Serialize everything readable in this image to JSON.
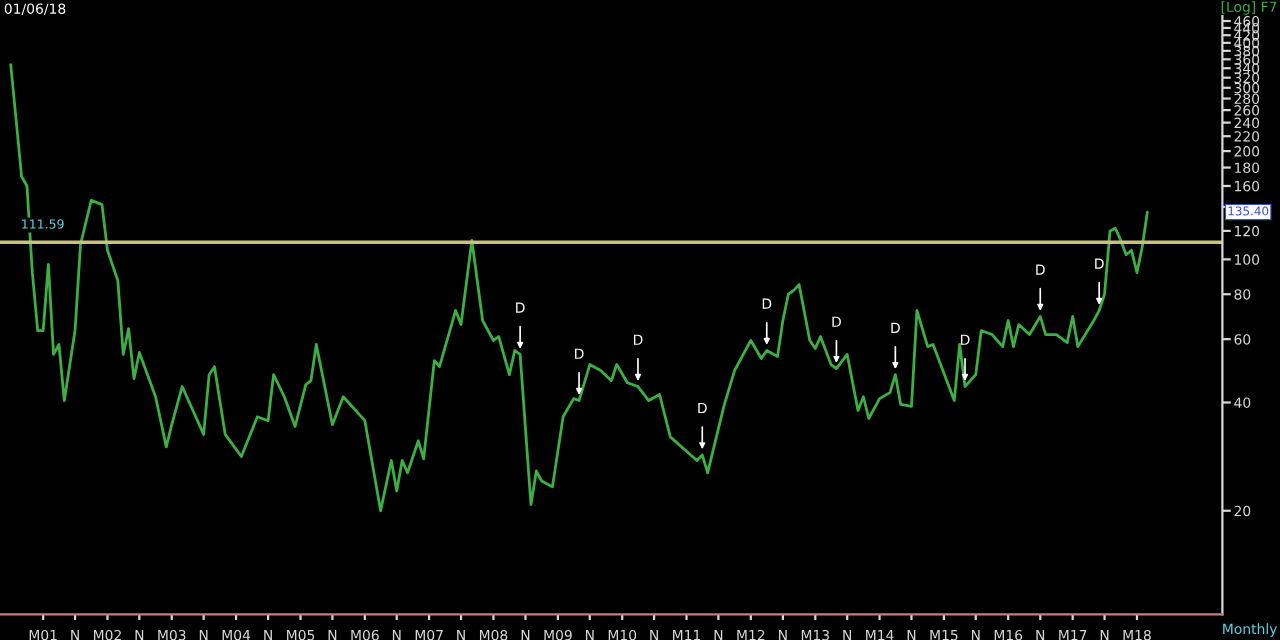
{
  "chart_data": {
    "type": "line",
    "title": "01/06/18",
    "annotations": [
      "[Log] F7",
      "Monthly",
      "135.40",
      {
        "text": "D",
        "x": "2008-06",
        "y": 54.4
      },
      {
        "text": "D",
        "x": "2009-05",
        "y": 40.5
      },
      {
        "text": "D",
        "x": "2010-04",
        "y": 44.3
      },
      {
        "text": "D",
        "x": "2011-04",
        "y": 28.6
      },
      {
        "text": "D",
        "x": "2012-04",
        "y": 55.8
      },
      {
        "text": "D",
        "x": "2013-05",
        "y": 49.7
      },
      {
        "text": "D",
        "x": "2014-04",
        "y": 47.8
      },
      {
        "text": "D",
        "x": "2015-05",
        "y": 44.3
      },
      {
        "text": "D",
        "x": "2016-07",
        "y": 69.4
      },
      {
        "text": "D",
        "x": "2017-06",
        "y": 72.1
      }
    ],
    "log": "y",
    "grid": false,
    "legend": false,
    "xlim": [
      "2000-05",
      "2019-05"
    ],
    "ylim": [
      10.3,
      475
    ],
    "xticks": [
      {
        "value": "2001-01",
        "label": "M01"
      },
      {
        "value": "2001-07",
        "label": "N"
      },
      {
        "value": "2002-01",
        "label": "M02"
      },
      {
        "value": "2002-07",
        "label": "N"
      },
      {
        "value": "2003-01",
        "label": "M03"
      },
      {
        "value": "2003-07",
        "label": "N"
      },
      {
        "value": "2004-01",
        "label": "M04"
      },
      {
        "value": "2004-07",
        "label": "N"
      },
      {
        "value": "2005-01",
        "label": "M05"
      },
      {
        "value": "2005-07",
        "label": "N"
      },
      {
        "value": "2006-01",
        "label": "M06"
      },
      {
        "value": "2006-07",
        "label": "N"
      },
      {
        "value": "2007-01",
        "label": "M07"
      },
      {
        "value": "2007-07",
        "label": "N"
      },
      {
        "value": "2008-01",
        "label": "M08"
      },
      {
        "value": "2008-07",
        "label": "N"
      },
      {
        "value": "2009-01",
        "label": "M09"
      },
      {
        "value": "2009-07",
        "label": "N"
      },
      {
        "value": "2010-01",
        "label": "M10"
      },
      {
        "value": "2010-07",
        "label": "N"
      },
      {
        "value": "2011-01",
        "label": "M11"
      },
      {
        "value": "2011-07",
        "label": "N"
      },
      {
        "value": "2012-01",
        "label": "M12"
      },
      {
        "value": "2012-07",
        "label": "N"
      },
      {
        "value": "2013-01",
        "label": "M13"
      },
      {
        "value": "2013-07",
        "label": "N"
      },
      {
        "value": "2014-01",
        "label": "M14"
      },
      {
        "value": "2014-07",
        "label": "N"
      },
      {
        "value": "2015-01",
        "label": "M15"
      },
      {
        "value": "2015-07",
        "label": "N"
      },
      {
        "value": "2016-01",
        "label": "M16"
      },
      {
        "value": "2016-07",
        "label": "N"
      },
      {
        "value": "2017-01",
        "label": "M17"
      },
      {
        "value": "2017-07",
        "label": "N"
      },
      {
        "value": "2018-01",
        "label": "M18"
      }
    ],
    "yticks": [
      20,
      40,
      60,
      80,
      100,
      120,
      {
        "value": 140,
        "label": null
      },
      160,
      180,
      200,
      220,
      240,
      260,
      280,
      300,
      320,
      340,
      360,
      380,
      400,
      420,
      440,
      460
    ],
    "ref_lines": [
      {
        "axis": "y",
        "value": 111.59,
        "label": "111.59",
        "color": "#c8c27a"
      }
    ],
    "series": [
      {
        "color": "#3cb043",
        "x": [
          "2000-07",
          "2000-09",
          "2000-10",
          "2000-11",
          "2000-12",
          "2001-01",
          "2001-02",
          "2001-03",
          "2001-04",
          "2001-05",
          "2001-07",
          "2001-08",
          "2001-10",
          "2001-12",
          "2002-01",
          "2002-03",
          "2002-04",
          "2002-05",
          "2002-06",
          "2002-07",
          "2002-10",
          "2002-12",
          "2003-01",
          "2003-03",
          "2003-07",
          "2003-08",
          "2003-09",
          "2003-11",
          "2004-02",
          "2004-05",
          "2004-07",
          "2004-08",
          "2004-10",
          "2004-12",
          "2005-02",
          "2005-03",
          "2005-04",
          "2005-07",
          "2005-09",
          "2006-01",
          "2006-04",
          "2006-06",
          "2006-07",
          "2006-08",
          "2006-09",
          "2006-11",
          "2006-12",
          "2007-02",
          "2007-03",
          "2007-06",
          "2007-07",
          "2007-09",
          "2007-11",
          "2008-01",
          "2008-02",
          "2008-04",
          "2008-05",
          "2008-06",
          "2008-08",
          "2008-09",
          "2008-10",
          "2008-12",
          "2009-02",
          "2009-04",
          "2009-05",
          "2009-07",
          "2009-09",
          "2009-11",
          "2009-12",
          "2010-02",
          "2010-04",
          "2010-06",
          "2010-08",
          "2010-10",
          "2011-03",
          "2011-04",
          "2011-05",
          "2011-08",
          "2011-10",
          "2012-01",
          "2012-03",
          "2012-04",
          "2012-06",
          "2012-07",
          "2012-08",
          "2012-09",
          "2012-10",
          "2012-12",
          "2013-01",
          "2013-02",
          "2013-04",
          "2013-05",
          "2013-07",
          "2013-09",
          "2013-10",
          "2013-11",
          "2014-01",
          "2014-03",
          "2014-04",
          "2014-05",
          "2014-07",
          "2014-08",
          "2014-10",
          "2014-11",
          "2015-03",
          "2015-04",
          "2015-05",
          "2015-07",
          "2015-08",
          "2015-10",
          "2015-12",
          "2016-01",
          "2016-02",
          "2016-03",
          "2016-05",
          "2016-07",
          "2016-08",
          "2016-10",
          "2016-12",
          "2017-01",
          "2017-02",
          "2017-05",
          "2017-06",
          "2017-07",
          "2017-08",
          "2017-09",
          "2017-10",
          "2017-11",
          "2017-12",
          "2018-01",
          "2018-02",
          "2018-03"
        ],
        "values": [
          348,
          170,
          160,
          92,
          63.4,
          63.4,
          96.8,
          54.4,
          58.0,
          40.5,
          63.4,
          110,
          146,
          142,
          106,
          87.3,
          54.4,
          64.2,
          46.6,
          55.1,
          41.5,
          30.1,
          34.7,
          44.3,
          32.6,
          47.8,
          50.3,
          32.6,
          28.3,
          36.5,
          35.6,
          47.8,
          41.5,
          34.3,
          44.8,
          46.0,
          58.0,
          34.7,
          41.5,
          35.6,
          20.0,
          27.6,
          22.7,
          27.6,
          25.5,
          31.3,
          27.9,
          52.3,
          50.3,
          72.1,
          65.9,
          113,
          67.6,
          59.5,
          61.0,
          47.8,
          55.8,
          54.4,
          20.8,
          25.8,
          24.2,
          23.3,
          36.5,
          41.0,
          40.5,
          51.0,
          49.1,
          46.0,
          51.0,
          45.4,
          44.3,
          40.5,
          42.1,
          32.1,
          27.6,
          28.6,
          25.5,
          39.0,
          49.1,
          59.5,
          53.0,
          55.8,
          53.7,
          67.6,
          80.0,
          82.0,
          85.1,
          59.5,
          56.5,
          61.0,
          51.0,
          49.7,
          54.4,
          38.0,
          41.5,
          36.1,
          41.0,
          42.6,
          47.8,
          39.5,
          39.0,
          72.1,
          57.2,
          58.0,
          40.5,
          58.0,
          44.3,
          47.8,
          63.4,
          61.8,
          57.2,
          67.6,
          57.2,
          65.9,
          61.8,
          69.4,
          61.8,
          61.8,
          58.7,
          69.4,
          57.2,
          67.6,
          72.1,
          80.0,
          120,
          122,
          113,
          103,
          106,
          91.9,
          108,
          135.4
        ]
      }
    ]
  }
}
